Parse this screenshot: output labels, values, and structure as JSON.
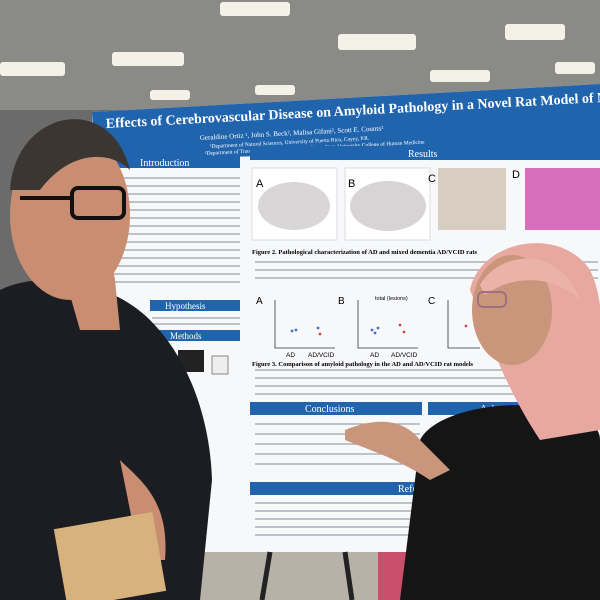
{
  "poster": {
    "title": "Effects of Cerebrovascular Disease on Amyloid Pathology in a Novel Rat Model of Mixed Dementia",
    "authors": "Geraldine Ortiz ¹, John S. Beck², Malisa Gifani², Scott E. Counts²",
    "affiliations": [
      "¹Department of Natural Sciences, University of Puerto Rico, Cayey, P.R.",
      "²Department of Translational Neuroscience, Michigan State University College of Human Medicine"
    ],
    "sections": [
      "Introduction",
      "Hypothesis",
      "Methods",
      "Results",
      "Conclusions",
      "Ackno",
      "Refe"
    ],
    "panels": [
      "A",
      "B",
      "C",
      "D"
    ],
    "figure_captions": [
      "Figure 2. Pathological characterization of AD and mixed dementia AD/VCID rats",
      "Figure 3. Comparison of amyloid pathology in the AD and AD/VCID rat models"
    ],
    "plot_labels": {
      "panels": [
        "A",
        "B",
        "C"
      ],
      "groups": [
        "AD",
        "AD/VCID"
      ],
      "total": "total (lesions)"
    }
  }
}
